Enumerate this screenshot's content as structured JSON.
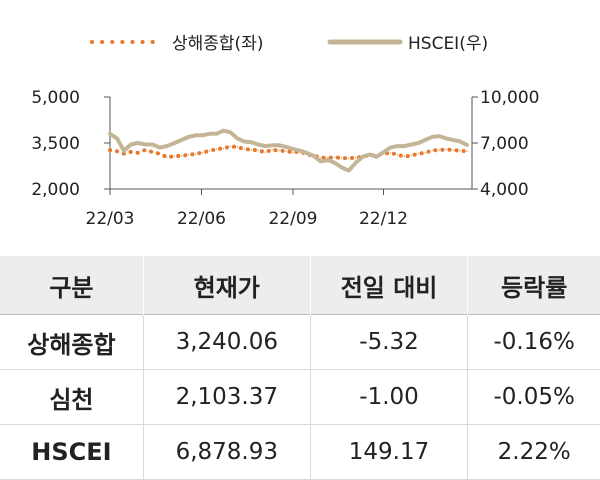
{
  "chart_data": {
    "type": "line",
    "series": [
      {
        "name": "상해종합(좌)",
        "axis": "left",
        "color": "#e8792a",
        "style": "dotted",
        "points": [
          [
            "2022-03-01",
            3270
          ],
          [
            "2022-03-08",
            3230
          ],
          [
            "2022-03-15",
            3150
          ],
          [
            "2022-03-22",
            3210
          ],
          [
            "2022-03-29",
            3180
          ],
          [
            "2022-04-06",
            3280
          ],
          [
            "2022-04-13",
            3200
          ],
          [
            "2022-04-20",
            3150
          ],
          [
            "2022-04-27",
            3040
          ],
          [
            "2022-05-05",
            3070
          ],
          [
            "2022-05-12",
            3080
          ],
          [
            "2022-05-19",
            3120
          ],
          [
            "2022-05-26",
            3140
          ],
          [
            "2022-06-02",
            3190
          ],
          [
            "2022-06-09",
            3240
          ],
          [
            "2022-06-16",
            3300
          ],
          [
            "2022-06-23",
            3320
          ],
          [
            "2022-06-30",
            3390
          ],
          [
            "2022-07-07",
            3370
          ],
          [
            "2022-07-14",
            3300
          ],
          [
            "2022-07-21",
            3280
          ],
          [
            "2022-07-28",
            3260
          ],
          [
            "2022-08-04",
            3200
          ],
          [
            "2022-08-11",
            3280
          ],
          [
            "2022-08-18",
            3250
          ],
          [
            "2022-08-25",
            3240
          ],
          [
            "2022-09-01",
            3190
          ],
          [
            "2022-09-08",
            3230
          ],
          [
            "2022-09-15",
            3120
          ],
          [
            "2022-09-22",
            3090
          ],
          [
            "2022-09-29",
            3020
          ],
          [
            "2022-10-06",
            3020
          ],
          [
            "2022-10-13",
            3030
          ],
          [
            "2022-10-20",
            3010
          ],
          [
            "2022-10-27",
            3000
          ],
          [
            "2022-11-03",
            3020
          ],
          [
            "2022-11-10",
            3050
          ],
          [
            "2022-11-17",
            3110
          ],
          [
            "2022-11-24",
            3090
          ],
          [
            "2022-12-01",
            3150
          ],
          [
            "2022-12-08",
            3180
          ],
          [
            "2022-12-15",
            3120
          ],
          [
            "2022-12-22",
            3060
          ],
          [
            "2022-12-29",
            3090
          ],
          [
            "2023-01-05",
            3150
          ],
          [
            "2023-01-12",
            3180
          ],
          [
            "2023-01-19",
            3260
          ],
          [
            "2023-01-26",
            3270
          ],
          [
            "2023-02-02",
            3290
          ],
          [
            "2023-02-09",
            3270
          ],
          [
            "2023-02-16",
            3250
          ],
          [
            "2023-02-23",
            3230
          ]
        ]
      },
      {
        "name": "HSCEI(우)",
        "axis": "right",
        "color": "#c4b596",
        "style": "solid",
        "points": [
          [
            "2022-03-01",
            7600
          ],
          [
            "2022-03-08",
            7300
          ],
          [
            "2022-03-15",
            6500
          ],
          [
            "2022-03-22",
            6900
          ],
          [
            "2022-03-29",
            7000
          ],
          [
            "2022-04-06",
            6900
          ],
          [
            "2022-04-13",
            6900
          ],
          [
            "2022-04-20",
            6700
          ],
          [
            "2022-04-27",
            6800
          ],
          [
            "2022-05-05",
            7000
          ],
          [
            "2022-05-12",
            7200
          ],
          [
            "2022-05-19",
            7400
          ],
          [
            "2022-05-26",
            7500
          ],
          [
            "2022-06-02",
            7500
          ],
          [
            "2022-06-09",
            7600
          ],
          [
            "2022-06-16",
            7600
          ],
          [
            "2022-06-23",
            7800
          ],
          [
            "2022-06-30",
            7700
          ],
          [
            "2022-07-07",
            7300
          ],
          [
            "2022-07-14",
            7100
          ],
          [
            "2022-07-21",
            7050
          ],
          [
            "2022-07-28",
            6900
          ],
          [
            "2022-08-04",
            6800
          ],
          [
            "2022-08-11",
            6850
          ],
          [
            "2022-08-18",
            6850
          ],
          [
            "2022-08-25",
            6750
          ],
          [
            "2022-09-01",
            6600
          ],
          [
            "2022-09-08",
            6500
          ],
          [
            "2022-09-15",
            6350
          ],
          [
            "2022-09-22",
            6150
          ],
          [
            "2022-09-29",
            5800
          ],
          [
            "2022-10-06",
            5900
          ],
          [
            "2022-10-13",
            5700
          ],
          [
            "2022-10-20",
            5400
          ],
          [
            "2022-10-27",
            5200
          ],
          [
            "2022-11-03",
            5700
          ],
          [
            "2022-11-10",
            6100
          ],
          [
            "2022-11-17",
            6250
          ],
          [
            "2022-11-24",
            6100
          ],
          [
            "2022-12-01",
            6400
          ],
          [
            "2022-12-08",
            6700
          ],
          [
            "2022-12-15",
            6800
          ],
          [
            "2022-12-22",
            6800
          ],
          [
            "2022-12-29",
            6900
          ],
          [
            "2023-01-05",
            7000
          ],
          [
            "2023-01-12",
            7200
          ],
          [
            "2023-01-19",
            7400
          ],
          [
            "2023-01-26",
            7450
          ],
          [
            "2023-02-02",
            7300
          ],
          [
            "2023-02-09",
            7200
          ],
          [
            "2023-02-16",
            7100
          ],
          [
            "2023-02-23",
            6878.93
          ]
        ]
      }
    ],
    "x_range": [
      "2022-03-01",
      "2023-02-28"
    ],
    "x_ticks": [
      {
        "date": "2022-03-01",
        "label": "22/03"
      },
      {
        "date": "2022-06-01",
        "label": "22/06"
      },
      {
        "date": "2022-09-01",
        "label": "22/09"
      },
      {
        "date": "2022-12-01",
        "label": "22/12"
      }
    ],
    "y_left": {
      "range": [
        2000,
        5000
      ],
      "ticks": [
        5000,
        3500,
        2000
      ],
      "labels": [
        "5,000",
        "3,500",
        "2,000"
      ]
    },
    "y_right": {
      "range": [
        4000,
        10000
      ],
      "ticks": [
        10000,
        7000,
        4000
      ],
      "labels": [
        "10,000",
        "7,000",
        "4,000"
      ]
    },
    "grid": false,
    "legend_position": "top-center"
  },
  "table": {
    "headers": [
      "구분",
      "현재가",
      "전일 대비",
      "등락률"
    ],
    "rows": [
      [
        "상해종합",
        "3,240.06",
        "-5.32",
        "-0.16%"
      ],
      [
        "심천",
        "2,103.37",
        "-1.00",
        "-0.05%"
      ],
      [
        "HSCEI",
        "6,878.93",
        "149.17",
        "2.22%"
      ]
    ]
  }
}
